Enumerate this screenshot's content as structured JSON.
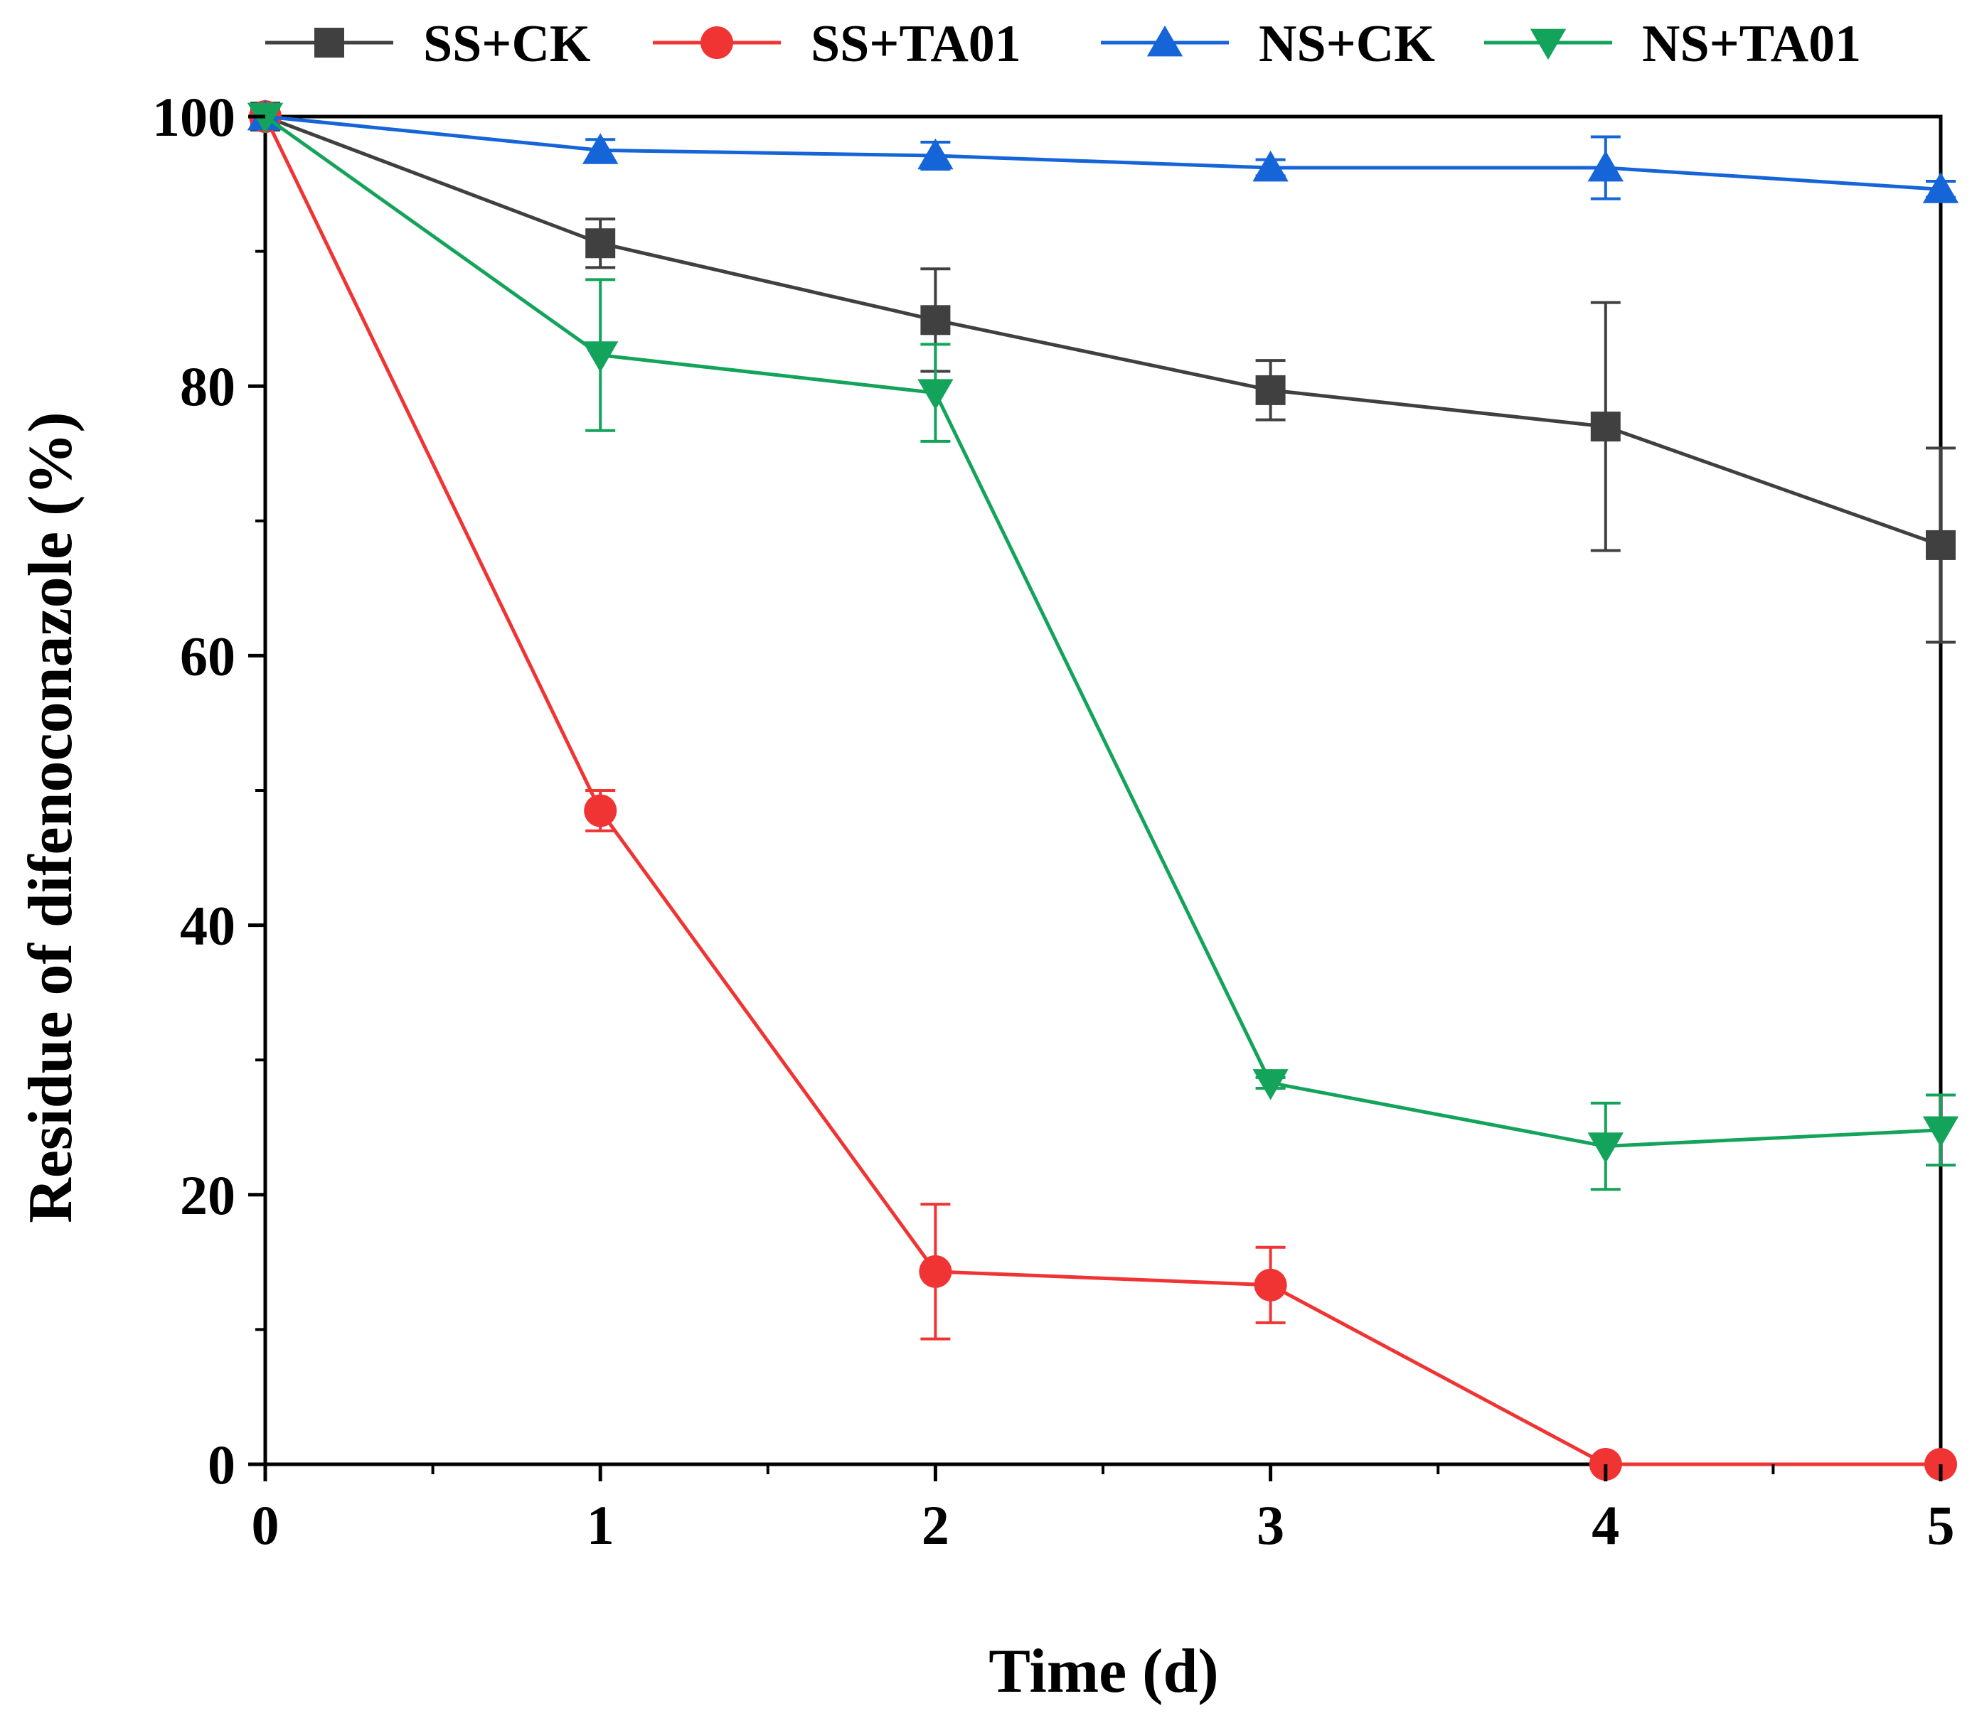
{
  "chart_data": {
    "type": "line",
    "xlabel": "Time (d)",
    "ylabel": "Residue of difenoconazole (%)",
    "xlim": [
      0,
      5
    ],
    "ylim": [
      0,
      100
    ],
    "x_ticks": [
      "0",
      "1",
      "2",
      "3",
      "4",
      "5"
    ],
    "y_ticks": [
      "0",
      "20",
      "40",
      "60",
      "80",
      "100"
    ],
    "x": [
      0,
      1,
      2,
      3,
      4,
      5
    ],
    "legend_position": "top",
    "series": [
      {
        "name": "SS+CK",
        "color": "#404040",
        "marker": "square",
        "values": [
          100,
          90.6,
          84.9,
          79.7,
          77.0,
          68.2
        ],
        "errors": [
          0,
          1.8,
          3.8,
          2.2,
          9.2,
          7.2
        ]
      },
      {
        "name": "SS+TA01",
        "color": "#f03434",
        "marker": "circle",
        "values": [
          100,
          48.5,
          14.3,
          13.3,
          0,
          0
        ],
        "errors": [
          0,
          1.5,
          5.0,
          2.8,
          0,
          0
        ]
      },
      {
        "name": "NS+CK",
        "color": "#1565d8",
        "marker": "triangle-up",
        "values": [
          100,
          97.5,
          97.1,
          96.2,
          96.2,
          94.6
        ],
        "errors": [
          0,
          0.8,
          1.0,
          0.6,
          2.3,
          0.6
        ]
      },
      {
        "name": "NS+TA01",
        "color": "#14a35b",
        "marker": "triangle-down",
        "values": [
          100,
          82.3,
          79.5,
          28.3,
          23.6,
          24.8
        ],
        "errors": [
          0,
          5.6,
          3.6,
          0.4,
          3.2,
          2.6
        ]
      }
    ]
  }
}
